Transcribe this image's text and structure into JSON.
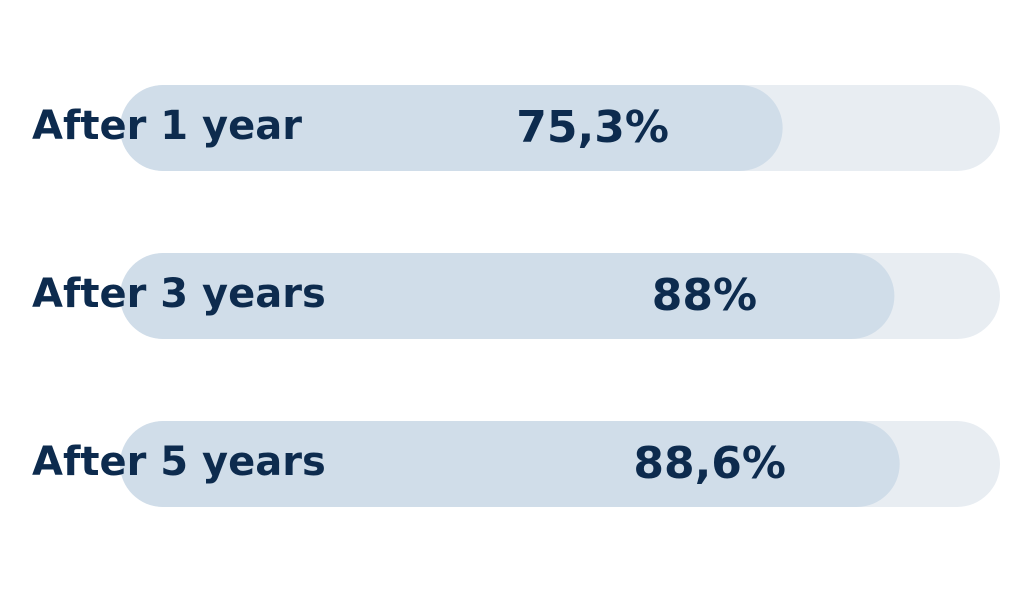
{
  "chart_data": {
    "type": "bar",
    "orientation": "horizontal",
    "categories": [
      "After 1 year",
      "After 3 years",
      "After 5 years"
    ],
    "values": [
      75.3,
      88,
      88.6
    ],
    "value_labels": [
      "75,3%",
      "88%",
      "88,6%"
    ],
    "xlim": [
      0,
      100
    ],
    "color": "#d0dde9",
    "track_color": "#e8edf2",
    "text_color": "#0d2b4e"
  }
}
